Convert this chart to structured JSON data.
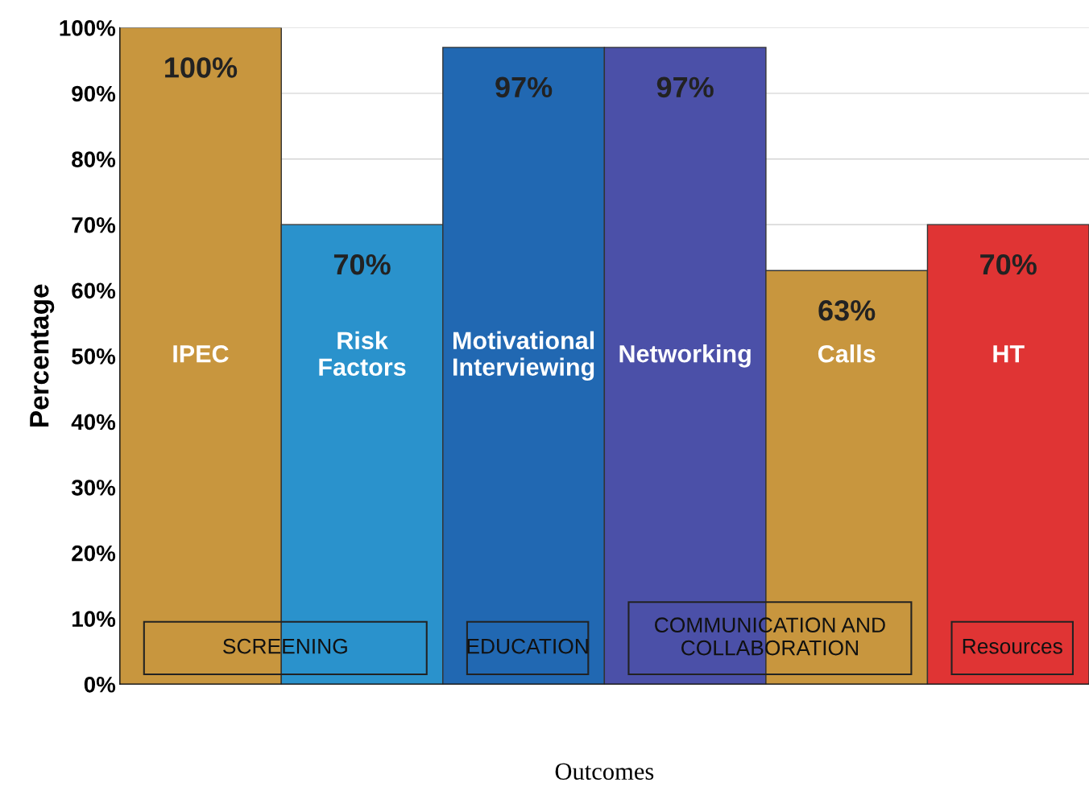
{
  "chart_data": {
    "type": "bar",
    "categories": [
      "IPEC",
      "Risk Factors",
      "Motivational Interviewing",
      "Networking",
      "Calls",
      "HT"
    ],
    "values": [
      100,
      70,
      97,
      97,
      63,
      70
    ],
    "colors": [
      "#c8963e",
      "#2a92cc",
      "#2168b2",
      "#4b50a8",
      "#c8963e",
      "#e03434"
    ],
    "value_labels": [
      "100%",
      "70%",
      "97%",
      "97%",
      "63%",
      "70%"
    ],
    "ylabel": "Percentage",
    "xlabel": "Outcomes",
    "ylim": [
      0,
      100
    ],
    "yticks": [
      {
        "value": 0,
        "label": "0%"
      },
      {
        "value": 10,
        "label": "10%"
      },
      {
        "value": 20,
        "label": "20%"
      },
      {
        "value": 30,
        "label": "30%"
      },
      {
        "value": 40,
        "label": "40%"
      },
      {
        "value": 50,
        "label": "50%"
      },
      {
        "value": 60,
        "label": "60%"
      },
      {
        "value": 70,
        "label": "70%"
      },
      {
        "value": 80,
        "label": "80%"
      },
      {
        "value": 90,
        "label": "90%"
      },
      {
        "value": 100,
        "label": "100%"
      }
    ],
    "annotations": [
      "SCREENING",
      "EDUCATION",
      "COMMUNICATION AND\nCOLLABORATION",
      "Resources"
    ],
    "grid": "y",
    "tick_labels": "y"
  }
}
